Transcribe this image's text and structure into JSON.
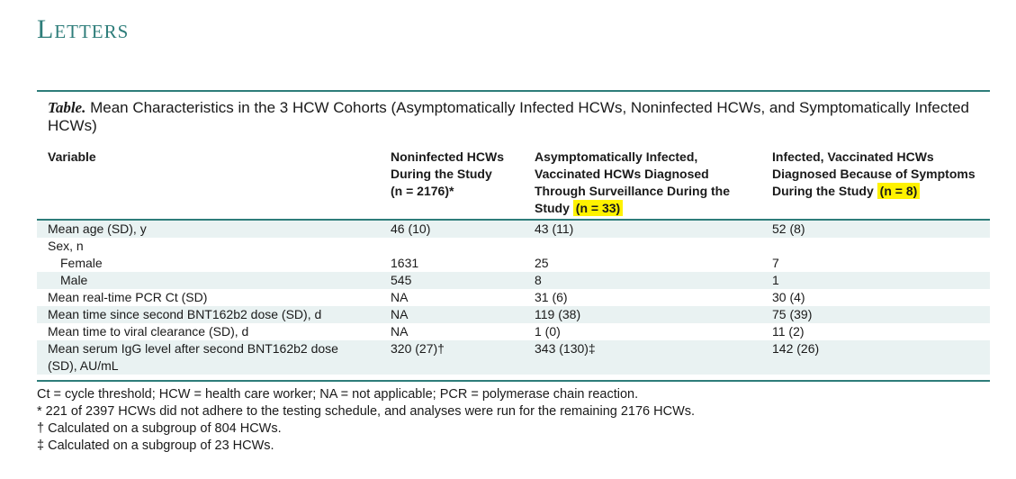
{
  "section_title": "Letters",
  "table": {
    "caption_lead": "Table.",
    "caption_text": "Mean Characteristics in the 3 HCW Cohorts (Asymptomatically Infected HCWs, Noninfected HCWs, and Symptomatically Infected HCWs)",
    "headers": {
      "variable": "Variable",
      "col1_line1": "Noninfected HCWs",
      "col1_line2": "During the Study",
      "col1_line3": "(n = 2176)*",
      "col2_line1": "Asymptomatically Infected,",
      "col2_line2": "Vaccinated HCWs Diagnosed",
      "col2_line3": "Through Surveillance During the",
      "col2_line4a": "Study",
      "col2_line4b": "(n = 33)",
      "col3_line1": "Infected, Vaccinated HCWs",
      "col3_line2": "Diagnosed Because of Symptoms",
      "col3_line3a": "During the Study",
      "col3_line3b": "(n = 8)"
    },
    "highlight_color": "#fff200",
    "accent_color": "#2e7d7a",
    "rows": [
      {
        "variable": "Mean age (SD), y",
        "c1": "46 (10)",
        "c2": "43 (11)",
        "c3": "52 (8)"
      },
      {
        "variable": "Sex, n",
        "c1": "",
        "c2": "",
        "c3": ""
      },
      {
        "variable": "Female",
        "c1": "1631",
        "c2": "25",
        "c3": "7"
      },
      {
        "variable": "Male",
        "c1": "545",
        "c2": "8",
        "c3": "1"
      },
      {
        "variable": "Mean real-time PCR Ct (SD)",
        "c1": "NA",
        "c2": "31 (6)",
        "c3": "30 (4)"
      },
      {
        "variable": "Mean time since second BNT162b2 dose (SD), d",
        "c1": "NA",
        "c2": "119 (38)",
        "c3": "75 (39)"
      },
      {
        "variable": "Mean time to viral clearance (SD), d",
        "c1": "NA",
        "c2": "1 (0)",
        "c3": "11 (2)"
      },
      {
        "variable": "Mean serum IgG level after second BNT162b2 dose (SD), AU/mL",
        "c1": "320 (27)†",
        "c2": "343 (130)‡",
        "c3": "142 (26)"
      }
    ],
    "notes": [
      "Ct = cycle threshold; HCW = health care worker; NA = not applicable; PCR = polymerase chain reaction.",
      "* 221 of 2397 HCWs did not adhere to the testing schedule, and analyses were run for the remaining 2176 HCWs.",
      "† Calculated on a subgroup of 804 HCWs.",
      "‡ Calculated on a subgroup of 23 HCWs."
    ]
  }
}
